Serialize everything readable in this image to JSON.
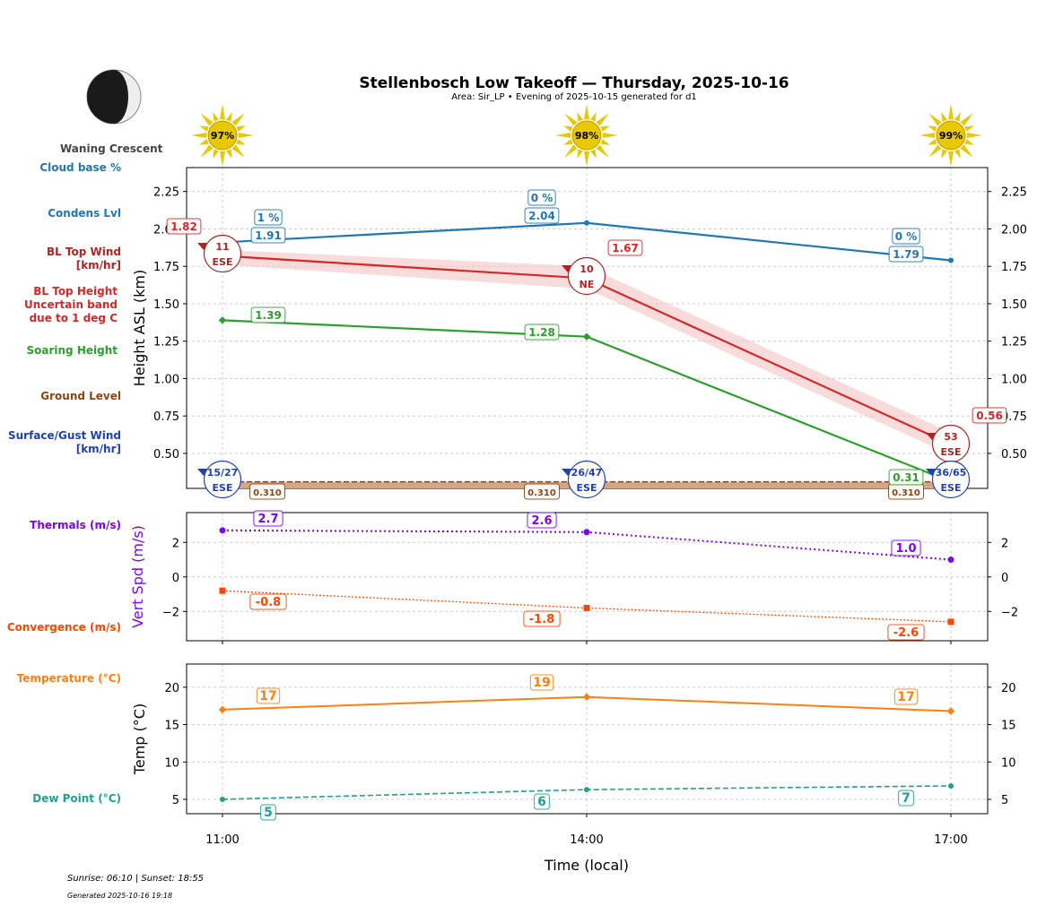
{
  "title": "Stellenbosch Low Takeoff — Thursday, 2025-10-16",
  "subtitle": "Area: Sir_LP • Evening of 2025-10-15 generated for d1",
  "moon_phase": "Waning Crescent",
  "footer": {
    "sun": "Sunrise: 06:10 | Sunset: 18:55",
    "generated": "Generated 2025-10-16 19:18"
  },
  "row_labels": {
    "cloud_base": "Cloud base %",
    "condens": "Condens Lvl",
    "bl_wind_1": "BL Top Wind",
    "bl_wind_2": "[km/hr]",
    "bl_top_1": "BL Top Height",
    "bl_top_2": "Uncertain band",
    "bl_top_3": "due to 1 deg C",
    "soaring": "Soaring Height",
    "ground": "Ground Level",
    "surface_1": "Surface/Gust Wind",
    "surface_2": "[km/hr]",
    "thermals": "Thermals (m/s)",
    "convergence": "Convergence (m/s)",
    "temperature": "Temperature (°C)",
    "dewpoint": "Dew Point (°C)"
  },
  "colors": {
    "condens": "#1f77b4",
    "bl_top": "#d62728",
    "bl_wind": "#b22222",
    "soaring": "#2ca02c",
    "ground": "#8b4513",
    "surface": "#1f3fbf",
    "thermals": "#7f00ff",
    "convergence": "#ff4500",
    "temperature": "#ff7f0e",
    "dewpoint": "#20a090",
    "sun": "#e8c800"
  },
  "chart_data": [
    {
      "type": "line",
      "ylabel": "Height ASL (km)",
      "ylim": [
        0.266,
        2.41
      ],
      "yticks": [
        "0.50",
        "0.75",
        "1.00",
        "1.25",
        "1.50",
        "1.75",
        "2.00",
        "2.25"
      ],
      "ytick_values": [
        0.5,
        0.75,
        1.0,
        1.25,
        1.5,
        1.75,
        2.0,
        2.25
      ],
      "grid": true,
      "x": [
        "11:00",
        "14:00",
        "17:00"
      ],
      "sun_percent": [
        "97%",
        "98%",
        "99%"
      ],
      "series": [
        {
          "name": "Condens Lvl",
          "values": [
            1.91,
            2.04,
            1.79
          ],
          "labels": [
            "1.91",
            "2.04",
            "1.79"
          ]
        },
        {
          "name": "Cloud base %",
          "labels": [
            "1 %",
            "0 %",
            "0 %"
          ]
        },
        {
          "name": "BL Top Height",
          "values": [
            1.82,
            1.67,
            0.56
          ],
          "labels": [
            "1.82",
            "1.67",
            "0.56"
          ],
          "band": [
            [
              1.76,
              1.86
            ],
            [
              1.6,
              1.75
            ],
            [
              0.49,
              0.64
            ]
          ]
        },
        {
          "name": "Soaring Height",
          "values": [
            1.39,
            1.28,
            0.31
          ],
          "labels": [
            "1.39",
            "1.28",
            "0.31"
          ]
        },
        {
          "name": "Ground Level",
          "values": [
            0.31,
            0.31,
            0.31
          ],
          "labels": [
            "0.310",
            "0.310",
            "0.310"
          ]
        },
        {
          "name": "BL Top Wind",
          "speed": [
            "11",
            "10",
            "53"
          ],
          "dir": [
            "ESE",
            "NE",
            "ESE"
          ]
        },
        {
          "name": "Surface/Gust Wind",
          "speed": [
            "15/27",
            "26/47",
            "36/65"
          ],
          "dir": [
            "ESE",
            "ESE",
            "ESE"
          ]
        }
      ]
    },
    {
      "type": "line",
      "ylabel": "Vert Spd (m/s)",
      "ylim": [
        -3.7,
        3.73
      ],
      "yticks": [
        "−2",
        "0",
        "2"
      ],
      "ytick_values": [
        -2,
        0,
        2
      ],
      "grid": true,
      "series": [
        {
          "name": "Thermals (m/s)",
          "values": [
            2.7,
            2.6,
            1.0
          ],
          "labels": [
            "2.7",
            "2.6",
            "1.0"
          ]
        },
        {
          "name": "Convergence (m/s)",
          "values": [
            -0.8,
            -1.8,
            -2.6
          ],
          "labels": [
            "-0.8",
            "-1.8",
            "-2.6"
          ]
        }
      ]
    },
    {
      "type": "line",
      "ylabel": "Temp (°C)",
      "xlabel": "Time (local)",
      "ylim": [
        3.08,
        23.1
      ],
      "yticks": [
        "5",
        "10",
        "15",
        "20"
      ],
      "ytick_values": [
        5,
        10,
        15,
        20
      ],
      "grid": true,
      "x": [
        "11:00",
        "14:00",
        "17:00"
      ],
      "series": [
        {
          "name": "Temperature (°C)",
          "values": [
            17.0,
            18.7,
            16.8
          ],
          "labels": [
            "17",
            "19",
            "17"
          ]
        },
        {
          "name": "Dew Point (°C)",
          "values": [
            5.0,
            6.3,
            6.8
          ],
          "labels": [
            "5",
            "6",
            "7"
          ]
        }
      ]
    }
  ]
}
